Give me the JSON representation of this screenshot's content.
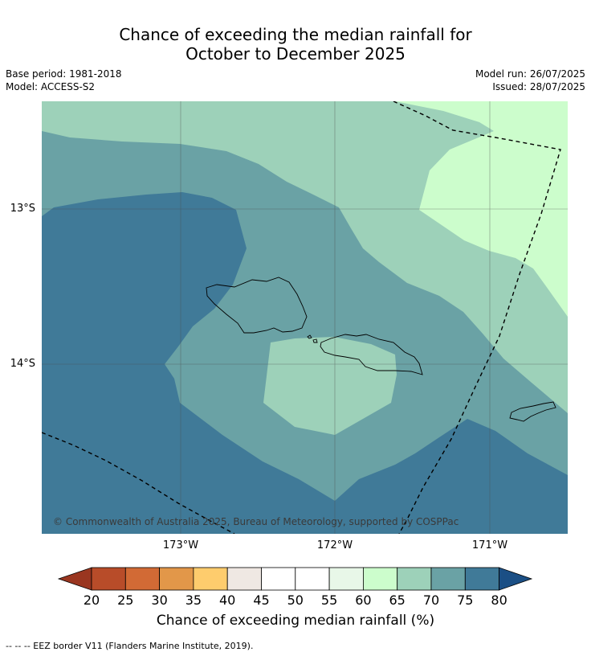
{
  "header": {
    "title_line1": "Chance of exceeding the median rainfall for",
    "title_line2": "October to December 2025",
    "base_period": "Base period: 1981-2018",
    "model": "Model: ACCESS-S2",
    "model_run": "Model run: 26/07/2025",
    "issued": "Issued: 28/07/2025"
  },
  "map": {
    "lat_labels": [
      "13°S",
      "14°S"
    ],
    "lon_labels": [
      "173°W",
      "172°W",
      "171°W"
    ],
    "copyright": "© Commonwealth of Australia 2025, Bureau of Meteorology, supported by COSPPac",
    "colors": {
      "c60_65": "#ccfdcc",
      "c65_70": "#9dd1b9",
      "c70_75": "#6aa2a5",
      "c75_80": "#407a98"
    }
  },
  "colorbar": {
    "ticks": [
      "20",
      "25",
      "30",
      "35",
      "40",
      "45",
      "50",
      "55",
      "60",
      "65",
      "70",
      "75",
      "80"
    ],
    "colors": [
      "#9a3620",
      "#b84c29",
      "#d26a35",
      "#e29749",
      "#fecc6d",
      "#efe8e3",
      "#ffffff",
      "#ffffff",
      "#e8f7e8",
      "#ccfdcc",
      "#9dd1b9",
      "#6aa2a5",
      "#407a98",
      "#1b4f85"
    ],
    "label": "Chance of exceeding median rainfall (%)"
  },
  "footer": {
    "eez_note": "--  --  -- EEZ border V11 (Flanders Marine Institute, 2019)."
  }
}
